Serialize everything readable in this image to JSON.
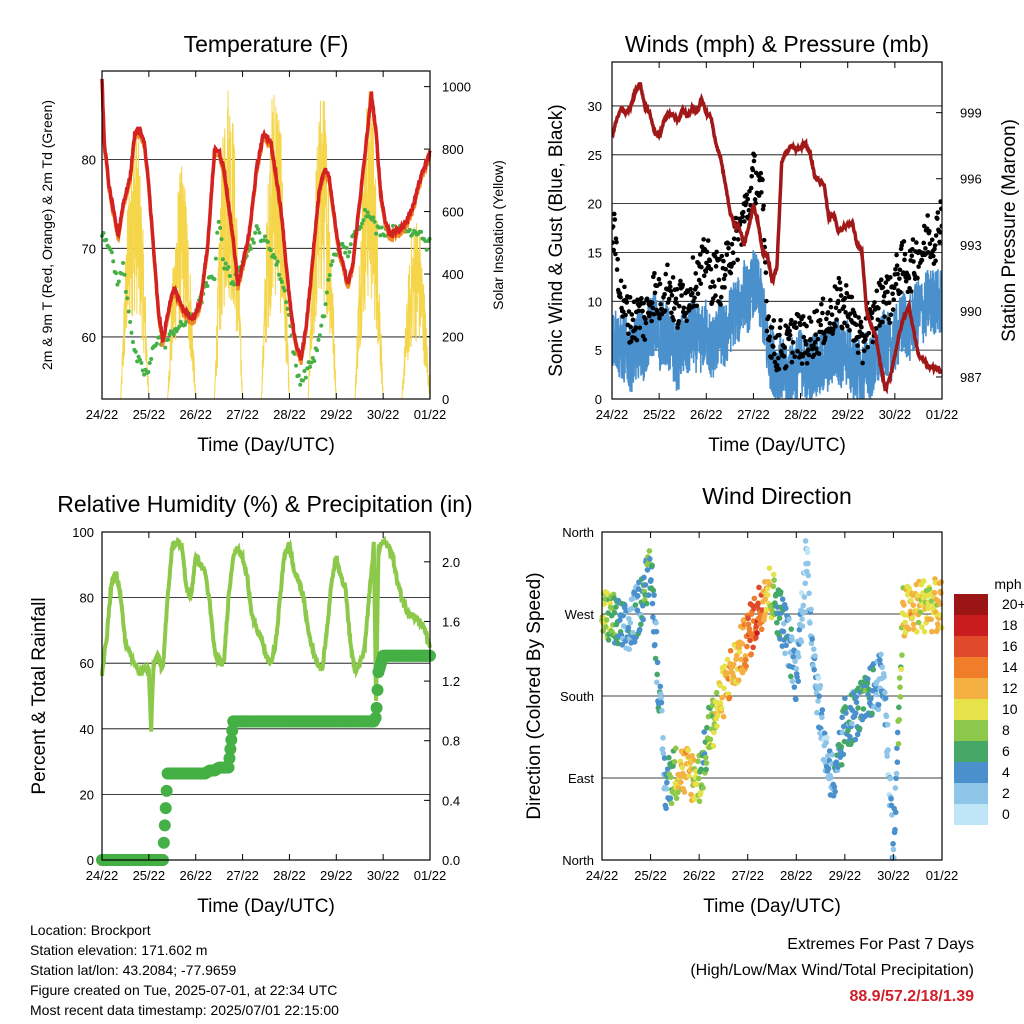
{
  "x_ticks": [
    "24/22",
    "25/22",
    "26/22",
    "27/22",
    "28/22",
    "29/22",
    "30/22",
    "01/22"
  ],
  "x_label": "Time (Day/UTC)",
  "panels": {
    "temperature": {
      "title": "Temperature (F)",
      "ylabel_left": "2m & 9m T (Red, Orange) & 2m Td (Green)",
      "ylabel_right": "Solar Insolation (Yellow)",
      "left_ticks": [
        60,
        70,
        80
      ],
      "right_ticks": [
        0,
        200,
        400,
        600,
        800,
        1000
      ],
      "colors": {
        "temp": "#d42121",
        "temp9m": "#f08a24",
        "dew": "#45b045",
        "solar": "#f5d54a"
      }
    },
    "winds": {
      "title": "Winds (mph) & Pressure (mb)",
      "ylabel_left": "Sonic Wind & Gust (Blue, Black)",
      "ylabel_right": "Station Pressure (Maroon)",
      "left_ticks": [
        0,
        5,
        10,
        15,
        20,
        25,
        30
      ],
      "right_ticks": [
        987,
        990,
        993,
        996,
        999
      ],
      "colors": {
        "wind": "#4a90cc",
        "gust": "#000000",
        "pressure": "#a01818"
      }
    },
    "humidity": {
      "title": "Relative Humidity (%) & Precipitation (in)",
      "ylabel_left": "Percent & Total Rainfall",
      "left_ticks": [
        0,
        20,
        40,
        60,
        80,
        100
      ],
      "right_ticks": [
        "0.0",
        "0.4",
        "0.8",
        "1.2",
        "1.6",
        "2.0"
      ],
      "colors": {
        "rh": "#8cc94a",
        "precip": "#45b045"
      }
    },
    "direction": {
      "title": "Wind Direction",
      "ylabel_left": "Direction (Colored By Speed)",
      "y_ticks": [
        "North",
        "East",
        "South",
        "West",
        "North"
      ],
      "legend_unit": "mph",
      "legend_labels": [
        "0",
        "2",
        "4",
        "6",
        "8",
        "10",
        "12",
        "14",
        "16",
        "18",
        "20+"
      ],
      "legend_colors": [
        "#bfe6f7",
        "#8ec5e8",
        "#4a90cc",
        "#45a866",
        "#8cc94a",
        "#e6e24a",
        "#f5b042",
        "#f07d2a",
        "#e0492a",
        "#c91c1f",
        "#9c1515"
      ]
    }
  },
  "info": {
    "location": "Location: Brockport",
    "elevation": "Station elevation: 171.602 m",
    "latlon": "Station lat/lon: 43.2084; -77.9659",
    "created": "Figure created on Tue, 2025-07-01, at 22:34 UTC",
    "recent": "Most recent data timestamp: 2025/07/01 22:15:00"
  },
  "extremes": {
    "title": "Extremes For Past 7 Days",
    "subtitle": "(High/Low/Max Wind/Total Precipitation)",
    "values": "88.9/57.2/18/1.39"
  },
  "chart_data": [
    {
      "type": "line",
      "title": "Temperature (F)",
      "x_days": [
        0,
        0.05,
        0.15,
        0.25,
        0.35,
        0.45,
        0.6,
        0.7,
        0.8,
        0.9,
        1.0,
        1.1,
        1.2,
        1.3,
        1.45,
        1.55,
        1.65,
        1.75,
        1.85,
        1.95,
        2.1,
        2.25,
        2.4,
        2.5,
        2.6,
        2.7,
        2.8,
        2.9,
        3.0,
        3.15,
        3.3,
        3.45,
        3.6,
        3.75,
        3.85,
        3.95,
        4.05,
        4.15,
        4.25,
        4.35,
        4.45,
        4.55,
        4.65,
        4.75,
        4.85,
        4.95,
        5.05,
        5.15,
        5.25,
        5.35,
        5.45,
        5.6,
        5.75,
        5.85,
        5.95,
        6.05,
        6.15,
        6.25,
        6.35,
        6.5,
        6.65,
        6.8,
        6.95,
        7.0
      ],
      "series": [
        {
          "name": "2m T",
          "values": [
            88.9,
            82,
            77,
            74,
            71.5,
            75,
            78,
            83,
            83.5,
            82,
            77,
            70,
            63,
            59.5,
            64,
            65.5,
            64,
            63,
            62.5,
            62,
            64,
            70,
            81,
            81,
            79,
            75,
            71,
            66,
            68,
            72,
            79,
            83,
            82,
            77,
            73,
            67,
            62,
            59,
            57.5,
            61,
            66,
            72,
            77,
            79,
            78,
            74,
            70,
            68,
            66,
            68,
            73,
            80,
            87.5,
            83,
            76,
            73,
            71.5,
            72,
            72,
            73,
            75,
            78,
            80,
            81
          ]
        },
        {
          "name": "2m Td",
          "values": [
            72,
            71.5,
            70.5,
            68,
            66,
            68,
            62,
            58,
            57,
            56,
            56,
            59,
            60,
            59,
            60,
            61,
            61,
            61.5,
            62,
            62.5,
            64,
            66,
            67,
            74,
            68,
            67.5,
            66,
            67,
            69,
            70,
            72,
            71,
            70,
            68,
            66,
            64,
            60,
            56,
            55,
            56,
            57,
            58,
            60,
            63,
            67,
            69,
            70,
            70,
            69.5,
            71,
            72,
            74,
            74,
            72,
            72,
            72,
            72,
            72,
            72,
            72,
            72,
            72,
            70,
            72
          ]
        }
      ],
      "solar_peaks_days": [
        0.7,
        1.7,
        2.7,
        3.7,
        4.7,
        5.7,
        6.7
      ],
      "solar_peak_values": [
        900,
        750,
        1050,
        1050,
        1000,
        1000,
        600
      ],
      "ylim_left": [
        53,
        90
      ],
      "ylim_right": [
        0,
        1050
      ]
    },
    {
      "type": "line",
      "title": "Winds (mph) & Pressure (mb)",
      "x_days": [
        0,
        0.1,
        0.2,
        0.3,
        0.4,
        0.5,
        0.6,
        0.7,
        0.8,
        0.9,
        1.0,
        1.1,
        1.2,
        1.3,
        1.4,
        1.5,
        1.6,
        1.7,
        1.8,
        1.9,
        2.0,
        2.1,
        2.2,
        2.3,
        2.4,
        2.5,
        2.6,
        2.7,
        2.8,
        2.9,
        3.0,
        3.1,
        3.2,
        3.3,
        3.4,
        3.5,
        3.6,
        3.7,
        3.8,
        3.9,
        4.0,
        4.1,
        4.2,
        4.3,
        4.4,
        4.5,
        4.6,
        4.7,
        4.8,
        4.9,
        5.0,
        5.1,
        5.2,
        5.3,
        5.4,
        5.5,
        5.6,
        5.7,
        5.8,
        5.9,
        6.0,
        6.1,
        6.2,
        6.3,
        6.4,
        6.5,
        6.6,
        6.7,
        6.8,
        6.9,
        7.0
      ],
      "series": [
        {
          "name": "Station Pressure",
          "values": [
            997.9,
            998.7,
            999.2,
            999.0,
            999.3,
            1000.0,
            1000.3,
            999.3,
            999.0,
            998.1,
            997.9,
            998.6,
            999.0,
            998.9,
            998.6,
            999.2,
            998.8,
            999.2,
            999.0,
            999.6,
            999.0,
            998.8,
            997.6,
            997.0,
            995.8,
            994.5,
            993.9,
            993.8,
            993.0,
            993.8,
            994.8,
            994.0,
            992.6,
            992.5,
            991.3,
            992.0,
            996.8,
            997.2,
            997.5,
            997.3,
            997.4,
            997.6,
            997.2,
            996.1,
            995.9,
            995.7,
            994.2,
            994.4,
            993.6,
            993.8,
            993.9,
            994.0,
            993.0,
            992.7,
            990.0,
            989.3,
            988.8,
            987.5,
            986.4,
            987.0,
            988.0,
            989.0,
            989.8,
            990.2,
            989.1,
            988.0,
            987.8,
            987.5,
            987.4,
            987.4,
            987.2
          ]
        },
        {
          "name": "Sonic Wind",
          "values": [
            7,
            6,
            5,
            5,
            4,
            5,
            6,
            5,
            7,
            8,
            6,
            7,
            6,
            5,
            4,
            6,
            5,
            7,
            6,
            6,
            7,
            5,
            6,
            7,
            6,
            8,
            9,
            9,
            11,
            10,
            12,
            11,
            9,
            5,
            4,
            3,
            3,
            2,
            3,
            3,
            4,
            3,
            3,
            4,
            3,
            4,
            4,
            5,
            5,
            4,
            5,
            3,
            3,
            2,
            4,
            3,
            4,
            5,
            6,
            5,
            6,
            7,
            8,
            7,
            8,
            9,
            9,
            10,
            10,
            10,
            10
          ]
        },
        {
          "name": "Gust",
          "values": [
            18,
            15,
            10,
            9,
            8,
            8,
            9,
            8,
            10,
            11,
            10,
            11,
            12,
            10,
            9,
            11,
            10,
            12,
            12,
            13,
            15,
            12,
            13,
            12,
            13,
            15,
            16,
            17,
            19,
            20,
            23,
            22,
            20,
            8,
            6,
            5,
            6,
            5,
            6,
            7,
            6,
            6,
            6,
            7,
            7,
            8,
            8,
            9,
            10,
            9,
            10,
            8,
            7,
            5,
            8,
            7,
            9,
            10,
            11,
            10,
            12,
            13,
            14,
            13,
            14,
            15,
            15,
            17,
            16,
            17,
            20
          ]
        }
      ],
      "ylim_left": [
        0,
        34.5
      ],
      "ylim_right": [
        986.0,
        1001.3
      ]
    },
    {
      "type": "line",
      "title": "Relative Humidity (%) & Precipitation (in)",
      "x_days": [
        0,
        0.1,
        0.2,
        0.3,
        0.4,
        0.5,
        0.6,
        0.7,
        0.8,
        0.9,
        1.0,
        1.05,
        1.1,
        1.2,
        1.3,
        1.4,
        1.5,
        1.6,
        1.7,
        1.8,
        1.9,
        2.0,
        2.1,
        2.2,
        2.3,
        2.4,
        2.5,
        2.6,
        2.7,
        2.8,
        2.9,
        3.0,
        3.1,
        3.2,
        3.3,
        3.4,
        3.5,
        3.6,
        3.7,
        3.8,
        3.9,
        4.0,
        4.1,
        4.2,
        4.3,
        4.4,
        4.5,
        4.6,
        4.7,
        4.8,
        4.9,
        5.0,
        5.1,
        5.2,
        5.3,
        5.4,
        5.5,
        5.6,
        5.7,
        5.8,
        5.85,
        5.9,
        6.0,
        6.1,
        6.2,
        6.3,
        6.4,
        6.5,
        6.6,
        6.7,
        6.8,
        6.9,
        7.0
      ],
      "series": [
        {
          "name": "Relative Humidity",
          "values": [
            57,
            68,
            84,
            88,
            80,
            66,
            63,
            60,
            57,
            58,
            58,
            40,
            60,
            62,
            58,
            80,
            96,
            97,
            96,
            83,
            80,
            93,
            90,
            88,
            78,
            64,
            60,
            60,
            80,
            93,
            95,
            92,
            86,
            75,
            70,
            68,
            62,
            60,
            65,
            80,
            94,
            96,
            88,
            85,
            80,
            70,
            64,
            60,
            58,
            70,
            85,
            93,
            86,
            83,
            66,
            58,
            60,
            64,
            80,
            96,
            48,
            95,
            97,
            96,
            93,
            85,
            80,
            76,
            75,
            74,
            72,
            70,
            64
          ]
        },
        {
          "name": "Total Precipitation",
          "values": [
            0,
            0,
            0,
            0,
            0,
            0,
            0,
            0,
            0,
            0,
            0,
            0,
            0,
            0,
            0,
            0.58,
            0.58,
            0.58,
            0.58,
            0.58,
            0.58,
            0.58,
            0.58,
            0.58,
            0.6,
            0.6,
            0.62,
            0.62,
            0.62,
            0.93,
            0.93,
            0.93,
            0.93,
            0.93,
            0.93,
            0.93,
            0.93,
            0.93,
            0.93,
            0.93,
            0.93,
            0.93,
            0.93,
            0.93,
            0.93,
            0.93,
            0.93,
            0.93,
            0.93,
            0.93,
            0.93,
            0.93,
            0.93,
            0.93,
            0.93,
            0.93,
            0.93,
            0.93,
            0.93,
            0.93,
            0.96,
            1.26,
            1.37,
            1.37,
            1.37,
            1.37,
            1.37,
            1.37,
            1.37,
            1.37,
            1.37,
            1.37,
            1.37
          ]
        }
      ],
      "ylim_left": [
        0,
        100
      ],
      "ylim_right": [
        0,
        2.2
      ]
    },
    {
      "type": "scatter",
      "title": "Wind Direction",
      "x_days": [
        0,
        0.2,
        0.4,
        0.5,
        0.7,
        0.9,
        1.0,
        1.3,
        1.4,
        1.6,
        1.8,
        2.0,
        2.1,
        2.2,
        2.4,
        2.6,
        2.8,
        3.0,
        3.2,
        3.4,
        3.6,
        3.8,
        4.0,
        4.2,
        4.4,
        4.6,
        4.8,
        5.0,
        5.2,
        5.4,
        5.6,
        5.8,
        6.0,
        6.2,
        6.4,
        6.6,
        6.8,
        7.0
      ],
      "direction_deg": [
        270,
        265,
        255,
        250,
        270,
        300,
        330,
        80,
        90,
        100,
        95,
        90,
        110,
        140,
        170,
        200,
        220,
        245,
        270,
        300,
        280,
        250,
        200,
        330,
        200,
        120,
        80,
        150,
        160,
        170,
        190,
        200,
        10,
        270,
        275,
        280,
        280,
        275
      ],
      "speed_mph": [
        8,
        7,
        4,
        3,
        4,
        6,
        5,
        3,
        6,
        10,
        12,
        8,
        6,
        8,
        10,
        12,
        11,
        14,
        16,
        12,
        6,
        4,
        3,
        2,
        3,
        2,
        4,
        5,
        4,
        6,
        4,
        3,
        2,
        10,
        12,
        10,
        10,
        11
      ],
      "ylim": [
        0,
        360
      ]
    }
  ]
}
